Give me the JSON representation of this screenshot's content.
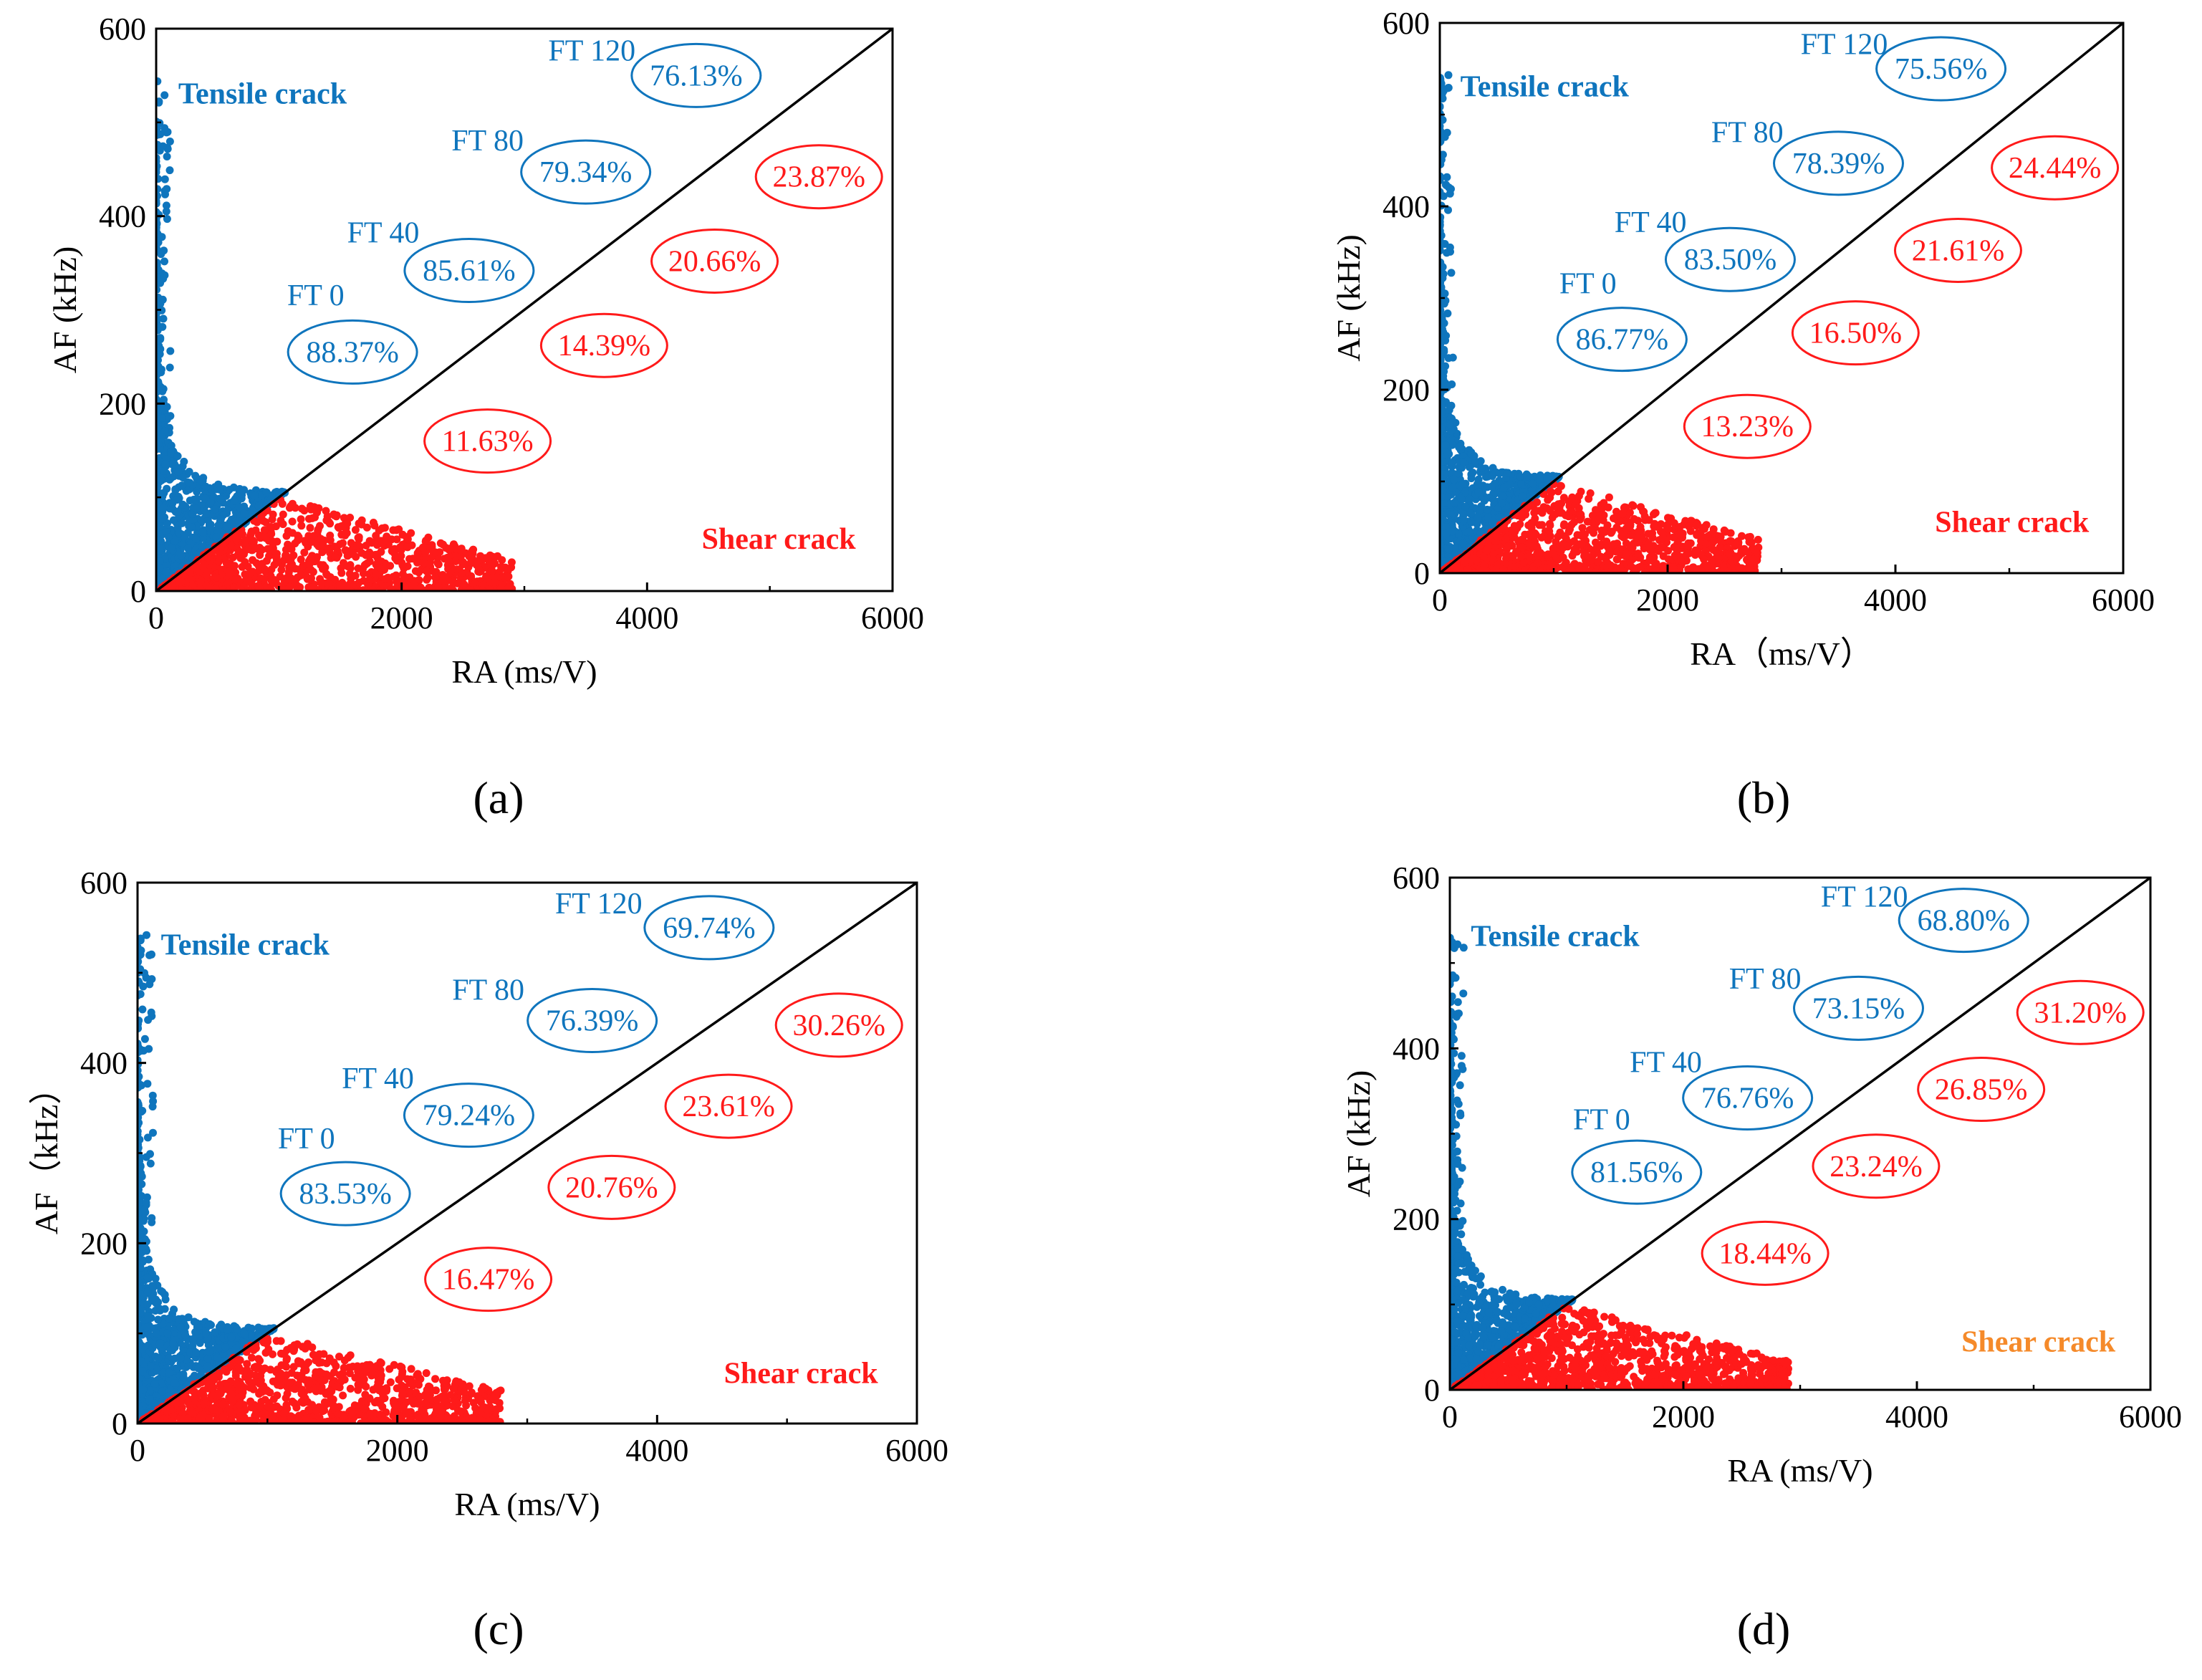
{
  "figure": {
    "colors": {
      "tensile": "#0f75bd",
      "shear": "#ff1a1a",
      "shear_label_d": "#f58a2a",
      "axis": "#000000"
    },
    "panels": [
      "(a)",
      "(b)",
      "(c)",
      "(d)"
    ]
  },
  "chart_data": [
    {
      "type": "scatter",
      "panel_label": "(a)",
      "xlabel": "RA (ms/V)",
      "ylabel": "AF (kHz)",
      "xlim": [
        0,
        6000
      ],
      "ylim": [
        0,
        600
      ],
      "xticks": [
        0,
        2000,
        4000,
        6000
      ],
      "yticks": [
        0,
        200,
        400,
        600
      ],
      "divider_line": {
        "from": [
          0,
          0
        ],
        "to": [
          6000,
          600
        ]
      },
      "region_labels": {
        "tensile": "Tensile crack",
        "shear": "Shear crack",
        "shear_color": "#ff1a1a"
      },
      "series": [
        {
          "name": "FT 0",
          "tensile": "88.37%",
          "shear": "11.63%"
        },
        {
          "name": "FT 40",
          "tensile": "85.61%",
          "shear": "14.39%"
        },
        {
          "name": "FT 80",
          "tensile": "79.34%",
          "shear": "20.66%"
        },
        {
          "name": "FT 120",
          "tensile": "76.13%",
          "shear": "23.87%"
        }
      ],
      "scatter_extent": {
        "tensile_max_af": 545,
        "shear_max_ra": 2900
      }
    },
    {
      "type": "scatter",
      "panel_label": "(b)",
      "xlabel": "RA（ms/V）",
      "ylabel": "AF (kHz)",
      "xlim": [
        0,
        6000
      ],
      "ylim": [
        0,
        600
      ],
      "xticks": [
        0,
        2000,
        4000,
        6000
      ],
      "yticks": [
        0,
        200,
        400,
        600
      ],
      "divider_line": {
        "from": [
          0,
          0
        ],
        "to": [
          6000,
          600
        ]
      },
      "region_labels": {
        "tensile": "Tensile crack",
        "shear": "Shear crack",
        "shear_color": "#ff1a1a"
      },
      "series": [
        {
          "name": "FT 0",
          "tensile": "86.77%",
          "shear": "13.23%"
        },
        {
          "name": "FT 40",
          "tensile": "83.50%",
          "shear": "16.50%"
        },
        {
          "name": "FT 80",
          "tensile": "78.39%",
          "shear": "21.61%"
        },
        {
          "name": "FT 120",
          "tensile": "75.56%",
          "shear": "24.44%"
        }
      ],
      "scatter_extent": {
        "tensile_max_af": 545,
        "shear_max_ra": 2800
      }
    },
    {
      "type": "scatter",
      "panel_label": "(c)",
      "xlabel": "RA (ms/V)",
      "ylabel": "AF（kHz）",
      "xlim": [
        0,
        6000
      ],
      "ylim": [
        0,
        600
      ],
      "xticks": [
        0,
        2000,
        4000,
        6000
      ],
      "yticks": [
        0,
        200,
        400,
        600
      ],
      "divider_line": {
        "from": [
          0,
          0
        ],
        "to": [
          6000,
          600
        ]
      },
      "region_labels": {
        "tensile": "Tensile crack",
        "shear": "Shear crack",
        "shear_color": "#ff1a1a"
      },
      "series": [
        {
          "name": "FT 0",
          "tensile": "83.53%",
          "shear": "16.47%"
        },
        {
          "name": "FT 40",
          "tensile": "79.24%",
          "shear": "20.76%"
        },
        {
          "name": "FT 80",
          "tensile": "76.39%",
          "shear": "23.61%"
        },
        {
          "name": "FT 120",
          "tensile": "69.74%",
          "shear": "30.26%"
        }
      ],
      "scatter_extent": {
        "tensile_max_af": 545,
        "shear_max_ra": 2800
      }
    },
    {
      "type": "scatter",
      "panel_label": "(d)",
      "xlabel": "RA (ms/V)",
      "ylabel": "AF (kHz)",
      "xlim": [
        0,
        6000
      ],
      "ylim": [
        0,
        600
      ],
      "xticks": [
        0,
        2000,
        4000,
        6000
      ],
      "yticks": [
        0,
        200,
        400,
        600
      ],
      "divider_line": {
        "from": [
          0,
          0
        ],
        "to": [
          6000,
          600
        ]
      },
      "region_labels": {
        "tensile": "Tensile crack",
        "shear": "Shear crack",
        "shear_color": "#f58a2a"
      },
      "series": [
        {
          "name": "FT 0",
          "tensile": "81.56%",
          "shear": "18.44%"
        },
        {
          "name": "FT 40",
          "tensile": "76.76%",
          "shear": "23.24%"
        },
        {
          "name": "FT 80",
          "tensile": "73.15%",
          "shear": "26.85%"
        },
        {
          "name": "FT 120",
          "tensile": "68.80%",
          "shear": "31.20%"
        }
      ],
      "scatter_extent": {
        "tensile_max_af": 545,
        "shear_max_ra": 2900
      }
    }
  ]
}
